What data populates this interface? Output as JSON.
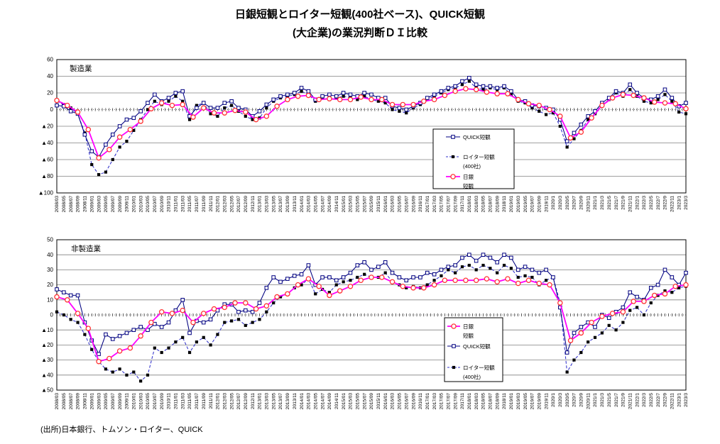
{
  "title": {
    "line1": "日銀短観とロイター短観(400社ベース)、QUICK短観",
    "line2": "(大企業)の業況判断ＤＩ比較"
  },
  "source": "(出所)日本銀行、トムソン・ロイター、QUICK",
  "colors": {
    "quick_line": "#000080",
    "reuters_line": "#3333cc",
    "reuters_marker": "#000000",
    "boj_line": "#ff00ff",
    "boj_marker": "#ff3333",
    "gridline": "#808080",
    "frame": "#000000"
  },
  "chart_data": [
    {
      "type": "line",
      "panel_label": "製造業",
      "ylim": [
        -100,
        60
      ],
      "ytick_step": 20,
      "ytick_labels": [
        "60",
        "40",
        "20",
        "0",
        "▲20",
        "▲40",
        "▲60",
        "▲80",
        "▲100"
      ],
      "x_start": "2008/03",
      "x_end": "2023/3",
      "x_total_months": 180,
      "x_labels": [
        "2008/03",
        "2008/05",
        "2008/07",
        "2008/09",
        "2008/11",
        "2009/01",
        "2009/03",
        "2009/05",
        "2009/07",
        "2009/09",
        "2009/11",
        "2010/01",
        "2010/03",
        "2010/05",
        "2010/07",
        "2010/09",
        "2010/11",
        "2011/01",
        "2011/03",
        "2011/05",
        "2011/07",
        "2011/09",
        "2011/11",
        "2012/01",
        "2012/03",
        "2012/05",
        "2012/07",
        "2012/09",
        "2012/11",
        "2013/01",
        "2013/03",
        "2013/05",
        "2013/07",
        "2013/09",
        "2013/11",
        "2014/01",
        "2014/03",
        "2014/05",
        "2014/07",
        "2014/09",
        "2014/11",
        "2015/01",
        "2015/03",
        "2015/05",
        "2015/07",
        "2015/09",
        "2015/11",
        "2016/01",
        "2016/03",
        "2016/05",
        "2016/07",
        "2016/09",
        "2016/11",
        "2017/01",
        "2017/03",
        "2017/05",
        "2017/07",
        "2017/09",
        "2017/11",
        "2018/01",
        "2018/03",
        "2018/05",
        "2018/07",
        "2018/09",
        "2018/11",
        "2019/01",
        "2019/03",
        "2019/05",
        "2019/07",
        "2019/09",
        "2019/11",
        "2020/1",
        "2020/3",
        "2020/5",
        "2020/7",
        "2020/9",
        "2020/11",
        "2021/1",
        "2021/3",
        "2021/5",
        "2021/7",
        "2021/9",
        "2021/11",
        "2022/1",
        "2022/3",
        "2022/5",
        "2022/7",
        "2022/9",
        "2022/11",
        "2023/1",
        "2023/3"
      ],
      "series": [
        {
          "name": "QUICK短観",
          "line_style": "solid",
          "line_color": "#000080",
          "marker": "open-square",
          "marker_color": "#000080",
          "x_step_months": 2,
          "values": [
            5,
            4,
            -2,
            -5,
            -30,
            -50,
            -57,
            -42,
            -30,
            -20,
            -12,
            -10,
            -2,
            8,
            18,
            10,
            14,
            20,
            22,
            -8,
            2,
            8,
            2,
            2,
            8,
            10,
            2,
            0,
            -8,
            -2,
            6,
            12,
            16,
            18,
            20,
            26,
            22,
            12,
            16,
            18,
            16,
            20,
            18,
            16,
            20,
            18,
            14,
            14,
            4,
            2,
            0,
            4,
            8,
            14,
            18,
            22,
            26,
            28,
            34,
            38,
            30,
            28,
            28,
            26,
            28,
            22,
            12,
            10,
            5,
            4,
            2,
            0,
            -12,
            -38,
            -28,
            -18,
            -8,
            -2,
            8,
            14,
            22,
            20,
            30,
            20,
            14,
            12,
            16,
            24,
            14,
            4,
            8
          ]
        },
        {
          "name": "ロイター短観(400社)",
          "line_style": "dashed",
          "line_color": "#3333cc",
          "marker": "filled-square",
          "marker_color": "#000000",
          "x_step_months": 2,
          "values": [
            10,
            6,
            2,
            -5,
            -28,
            -66,
            -78,
            -75,
            -60,
            -45,
            -38,
            -25,
            -12,
            0,
            10,
            6,
            10,
            16,
            10,
            -12,
            5,
            8,
            -5,
            -8,
            2,
            5,
            -2,
            -8,
            -12,
            -10,
            2,
            10,
            14,
            16,
            18,
            22,
            18,
            10,
            14,
            12,
            14,
            16,
            14,
            12,
            16,
            12,
            10,
            8,
            0,
            -2,
            -4,
            2,
            6,
            12,
            16,
            20,
            24,
            26,
            30,
            34,
            26,
            24,
            26,
            24,
            26,
            18,
            10,
            8,
            2,
            -2,
            -6,
            -4,
            -20,
            -45,
            -35,
            -25,
            -12,
            -5,
            5,
            12,
            20,
            16,
            24,
            16,
            10,
            8,
            12,
            18,
            10,
            -3,
            -5
          ]
        },
        {
          "name": "日銀短観",
          "line_style": "solid",
          "line_color": "#ff00ff",
          "marker": "open-circle",
          "marker_color": "#ff3333",
          "x_step_months": 3,
          "values": [
            11,
            5,
            -3,
            -24,
            -58,
            -48,
            -33,
            -24,
            -14,
            1,
            8,
            5,
            6,
            -9,
            2,
            -4,
            -4,
            -1,
            -3,
            -12,
            -8,
            4,
            12,
            16,
            17,
            12,
            13,
            12,
            12,
            15,
            12,
            12,
            6,
            6,
            6,
            10,
            12,
            17,
            22,
            25,
            24,
            21,
            19,
            19,
            12,
            7,
            5,
            0,
            -8,
            -34,
            -27,
            -10,
            5,
            14,
            18,
            17,
            14,
            9,
            8,
            7,
            1
          ]
        }
      ],
      "legend": {
        "entries": [
          {
            "series": 0,
            "lines": [
              "QUICK短観"
            ]
          },
          {
            "series": 1,
            "lines": [
              "ロイター短観",
              "(400社)"
            ]
          },
          {
            "series": 2,
            "lines": [
              "日銀",
              "短観"
            ]
          }
        ]
      }
    },
    {
      "type": "line",
      "panel_label": "非製造業",
      "ylim": [
        -50,
        50
      ],
      "ytick_step": 10,
      "ytick_labels": [
        "50",
        "40",
        "30",
        "20",
        "10",
        "0",
        "▲10",
        "▲20",
        "▲30",
        "▲40",
        "▲50"
      ],
      "x_start": "2008/03",
      "x_end": "2023/3",
      "x_total_months": 180,
      "x_labels": [
        "2008/03",
        "2008/05",
        "2008/07",
        "2008/09",
        "2008/11",
        "2009/01",
        "2009/03",
        "2009/05",
        "2009/07",
        "2009/09",
        "2009/11",
        "2010/01",
        "2010/03",
        "2010/05",
        "2010/07",
        "2010/09",
        "2010/11",
        "2011/01",
        "2011/03",
        "2011/05",
        "2011/07",
        "2011/09",
        "2011/11",
        "2012/01",
        "2012/03",
        "2012/05",
        "2012/07",
        "2012/09",
        "2012/11",
        "2013/01",
        "2013/03",
        "2013/05",
        "2013/07",
        "2013/09",
        "2013/11",
        "2014/01",
        "2014/03",
        "2014/05",
        "2014/07",
        "2014/09",
        "2014/11",
        "2015/01",
        "2015/03",
        "2015/05",
        "2015/07",
        "2015/09",
        "2015/11",
        "2016/01",
        "2016/03",
        "2016/05",
        "2016/07",
        "2016/09",
        "2016/11",
        "2017/01",
        "2017/03",
        "2017/05",
        "2017/07",
        "2017/09",
        "2017/11",
        "2018/01",
        "2018/03",
        "2018/05",
        "2018/07",
        "2018/09",
        "2018/11",
        "2019/01",
        "2019/03",
        "2019/05",
        "2019/07",
        "2019/09",
        "2019/11",
        "2020/1",
        "2020/3",
        "2020/5",
        "2020/7",
        "2020/9",
        "2020/11",
        "2021/1",
        "2021/3",
        "2021/5",
        "2021/7",
        "2021/9",
        "2021/11",
        "2022/1",
        "2022/3",
        "2022/5",
        "2022/7",
        "2022/9",
        "2022/11",
        "2023/1",
        "2023/3"
      ],
      "series": [
        {
          "name": "QUICK短観",
          "line_style": "solid",
          "line_color": "#000080",
          "marker": "open-square",
          "marker_color": "#000080",
          "x_step_months": 2,
          "values": [
            17,
            15,
            13,
            13,
            -5,
            -17,
            -26,
            -13,
            -16,
            -14,
            -12,
            -10,
            -8,
            -10,
            -6,
            -8,
            -5,
            3,
            10,
            -12,
            -4,
            -5,
            -3,
            3,
            7,
            7,
            2,
            3,
            2,
            8,
            18,
            25,
            22,
            24,
            26,
            27,
            33,
            20,
            25,
            25,
            23,
            25,
            28,
            33,
            35,
            30,
            32,
            35,
            28,
            25,
            23,
            25,
            25,
            28,
            27,
            30,
            32,
            33,
            38,
            40,
            36,
            40,
            38,
            35,
            40,
            38,
            30,
            32,
            30,
            28,
            30,
            25,
            5,
            -25,
            -12,
            -8,
            -5,
            -8,
            0,
            -2,
            2,
            5,
            15,
            12,
            10,
            18,
            20,
            30,
            25,
            20,
            28
          ]
        },
        {
          "name": "ロイター短観(400社)",
          "line_style": "dashed",
          "line_color": "#3333cc",
          "marker": "filled-square",
          "marker_color": "#000000",
          "x_step_months": 2,
          "values": [
            2,
            0,
            -3,
            -5,
            -13,
            -23,
            -31,
            -36,
            -38,
            -36,
            -40,
            -38,
            -44,
            -40,
            -22,
            -25,
            -22,
            -18,
            -15,
            -25,
            -18,
            -15,
            -20,
            -13,
            -5,
            -4,
            -3,
            -7,
            -5,
            -3,
            2,
            8,
            12,
            14,
            18,
            20,
            24,
            14,
            17,
            15,
            20,
            22,
            23,
            25,
            27,
            25,
            25,
            28,
            22,
            20,
            18,
            19,
            18,
            20,
            23,
            26,
            30,
            28,
            32,
            33,
            30,
            33,
            31,
            28,
            33,
            31,
            25,
            26,
            25,
            20,
            23,
            25,
            8,
            -38,
            -30,
            -25,
            -18,
            -15,
            -12,
            -7,
            -10,
            -5,
            3,
            5,
            0,
            8,
            13,
            16,
            15,
            18,
            19
          ]
        },
        {
          "name": "日銀短観",
          "line_style": "solid",
          "line_color": "#ff00ff",
          "marker": "open-circle",
          "marker_color": "#ff3333",
          "x_step_months": 3,
          "values": [
            12,
            10,
            1,
            -9,
            -31,
            -29,
            -24,
            -22,
            -14,
            -5,
            2,
            1,
            3,
            -5,
            1,
            4,
            5,
            8,
            8,
            4,
            6,
            12,
            14,
            20,
            24,
            19,
            13,
            16,
            19,
            23,
            25,
            25,
            22,
            19,
            18,
            18,
            20,
            23,
            23,
            23,
            23,
            24,
            22,
            24,
            21,
            23,
            21,
            20,
            8,
            -17,
            -12,
            -5,
            -1,
            1,
            2,
            9,
            9,
            13,
            14,
            19,
            20
          ]
        }
      ],
      "legend": {
        "entries": [
          {
            "series": 2,
            "lines": [
              "日銀",
              "短観"
            ]
          },
          {
            "series": 0,
            "lines": [
              "QUICK短観"
            ]
          },
          {
            "series": 1,
            "lines": [
              "ロイター短観",
              "(400社)"
            ]
          }
        ]
      }
    }
  ]
}
